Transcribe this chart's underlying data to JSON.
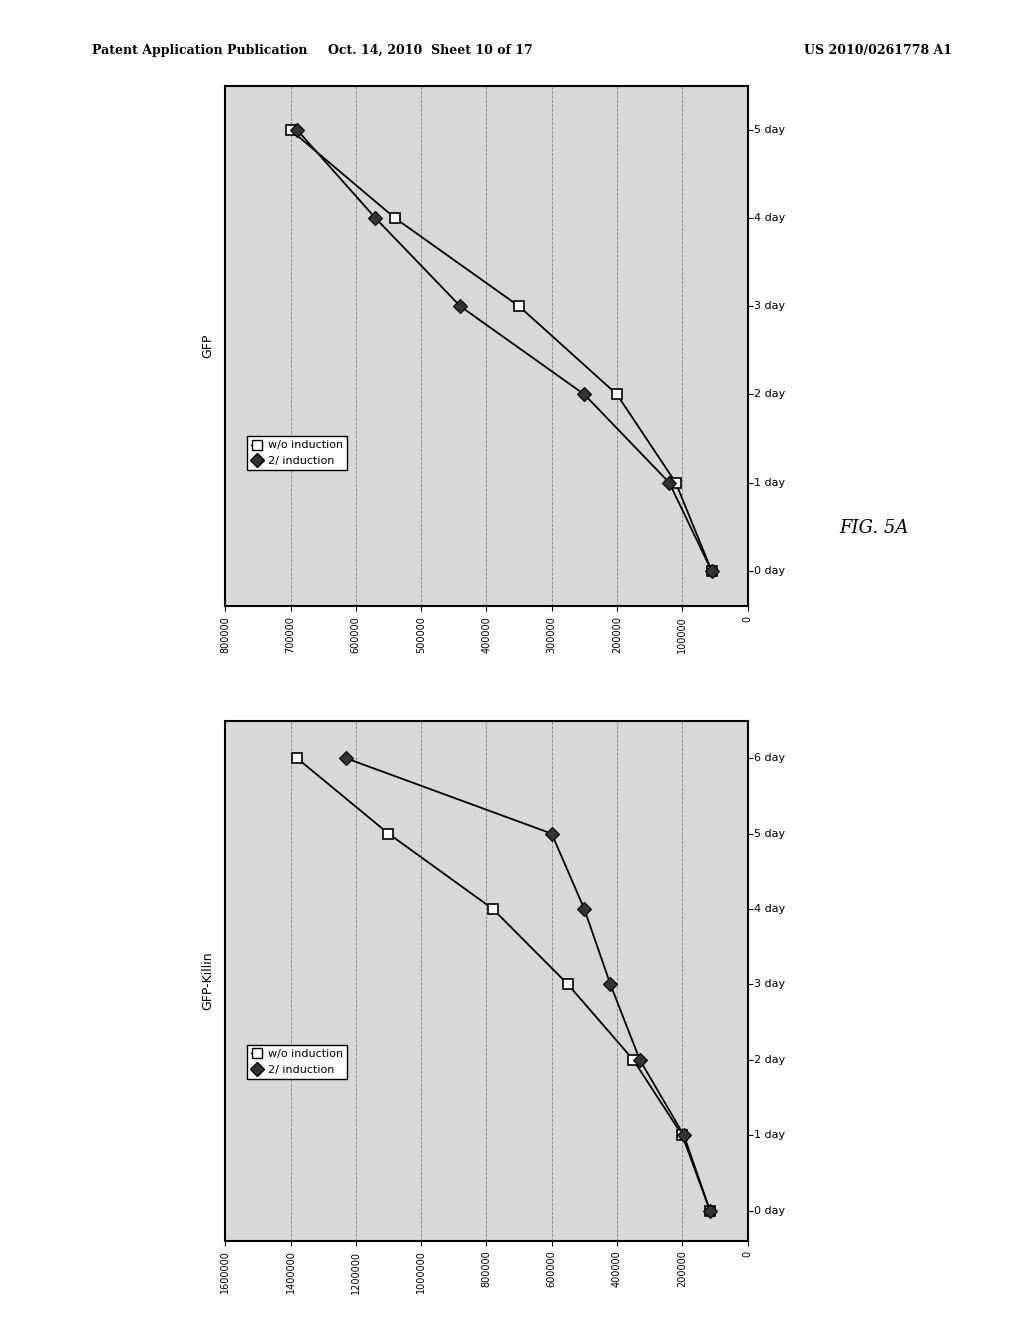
{
  "header_left": "Patent Application Publication",
  "header_center": "Oct. 14, 2010  Sheet 10 of 17",
  "header_right": "US 2010/0261778 A1",
  "fig_label": "FIG. 5A",
  "chart1": {
    "title": "GFP",
    "day_labels": [
      "0 day",
      "1 day",
      "2 day",
      "3 day",
      "4 day",
      "5 day"
    ],
    "day_ticks": [
      0,
      1,
      2,
      3,
      4,
      5
    ],
    "xlim_reversed": [
      800000,
      0
    ],
    "xticks": [
      800000,
      700000,
      600000,
      500000,
      400000,
      300000,
      200000,
      100000,
      0
    ],
    "xtick_labels": [
      "800000",
      "700000",
      "600000",
      "500000",
      "400000",
      "300000",
      "200000",
      "100000",
      "0"
    ],
    "series_woi": {
      "label": "w/o induction",
      "days": [
        0,
        1,
        2,
        3,
        4,
        5
      ],
      "values": [
        55000,
        110000,
        200000,
        350000,
        540000,
        700000
      ]
    },
    "series_ind": {
      "label": "2/ induction",
      "days": [
        0,
        1,
        2,
        3,
        4,
        5
      ],
      "values": [
        55000,
        120000,
        250000,
        440000,
        570000,
        690000
      ]
    }
  },
  "chart2": {
    "title": "GFP-Killin",
    "day_labels": [
      "0 day",
      "1 day",
      "2 day",
      "3 day",
      "4 day",
      "5 day",
      "6 day"
    ],
    "day_ticks": [
      0,
      1,
      2,
      3,
      4,
      5,
      6
    ],
    "xlim_reversed": [
      1600000,
      0
    ],
    "xticks": [
      1600000,
      1400000,
      1200000,
      1000000,
      800000,
      600000,
      400000,
      200000,
      0
    ],
    "xtick_labels": [
      "1600000",
      "1400000",
      "1200000",
      "1000000",
      "800000",
      "600000",
      "400000",
      "200000",
      "0"
    ],
    "series_woi": {
      "label": "w/o induction",
      "days": [
        0,
        1,
        2,
        3,
        4,
        5,
        6
      ],
      "values": [
        115000,
        200000,
        350000,
        550000,
        780000,
        1100000,
        1380000
      ]
    },
    "series_ind": {
      "label": "2/ induction",
      "days": [
        0,
        1,
        2,
        3,
        4,
        5,
        6
      ],
      "values": [
        115000,
        195000,
        330000,
        420000,
        500000,
        600000,
        1230000
      ]
    }
  }
}
